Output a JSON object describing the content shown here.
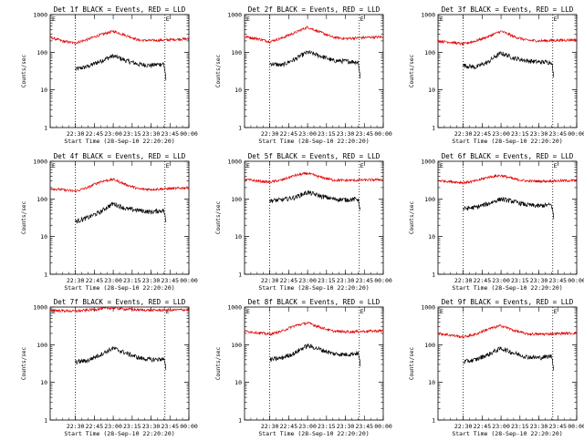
{
  "figure": {
    "x_axis_label": "Start Time (28-Sep-10 22:20:20)",
    "y_axis_label": "Counts/sec",
    "x_ticks": [
      "22:30",
      "22:45",
      "23:00",
      "23:15",
      "23:30",
      "23:45",
      "00:00"
    ],
    "y_ticks": [
      "1",
      "10",
      "100",
      "1000"
    ],
    "marker_label": "E",
    "colors": {
      "events": "#000000",
      "lld": "#e00000",
      "axes": "#000000"
    }
  },
  "chart_data": [
    {
      "type": "line",
      "title": "Det 1f BLACK = Events, RED = LLD",
      "xlabel": "Start Time (28-Sep-10 22:20:20)",
      "ylabel": "Counts/sec",
      "y_scale": "log",
      "ylim": [
        1,
        1000
      ],
      "x_range_minutes": [
        -10,
        100
      ],
      "x_tick_minutes": [
        10,
        25,
        40,
        55,
        70,
        85,
        100
      ],
      "vlines_minutes": [
        10,
        81
      ],
      "events_span": [
        10,
        82
      ],
      "lld_span": [
        -10,
        100
      ],
      "series": [
        {
          "name": "Events",
          "color": "#000000",
          "x": [
            10,
            20,
            30,
            40,
            50,
            60,
            70,
            80,
            82
          ],
          "y": [
            35,
            42,
            58,
            80,
            60,
            48,
            45,
            50,
            15
          ]
        },
        {
          "name": "LLD",
          "color": "#e00000",
          "x": [
            -10,
            0,
            10,
            20,
            30,
            40,
            50,
            60,
            70,
            80,
            90,
            100
          ],
          "y": [
            250,
            195,
            175,
            220,
            290,
            360,
            280,
            210,
            205,
            210,
            220,
            225
          ]
        }
      ]
    },
    {
      "type": "line",
      "title": "Det 2f BLACK = Events, RED = LLD",
      "xlabel": "Start Time (28-Sep-10 22:20:20)",
      "ylabel": "Counts/sec",
      "y_scale": "log",
      "ylim": [
        1,
        1000
      ],
      "x_range_minutes": [
        -10,
        100
      ],
      "x_tick_minutes": [
        10,
        25,
        40,
        55,
        70,
        85,
        100
      ],
      "vlines_minutes": [
        10,
        81
      ],
      "events_span": [
        10,
        82
      ],
      "lld_span": [
        -10,
        100
      ],
      "series": [
        {
          "name": "Events",
          "color": "#000000",
          "x": [
            10,
            20,
            30,
            40,
            50,
            60,
            70,
            80,
            82
          ],
          "y": [
            50,
            45,
            65,
            100,
            80,
            60,
            58,
            55,
            15
          ]
        },
        {
          "name": "LLD",
          "color": "#e00000",
          "x": [
            -10,
            0,
            10,
            20,
            30,
            40,
            50,
            60,
            70,
            80,
            90,
            100
          ],
          "y": [
            260,
            230,
            190,
            240,
            330,
            460,
            340,
            250,
            230,
            240,
            250,
            255
          ]
        }
      ]
    },
    {
      "type": "line",
      "title": "Det 3f BLACK = Events, RED = LLD",
      "xlabel": "Start Time (28-Sep-10 22:20:20)",
      "ylabel": "Counts/sec",
      "y_scale": "log",
      "ylim": [
        1,
        1000
      ],
      "x_range_minutes": [
        -10,
        100
      ],
      "x_tick_minutes": [
        10,
        25,
        40,
        55,
        70,
        85,
        100
      ],
      "vlines_minutes": [
        10,
        81
      ],
      "events_span": [
        10,
        82
      ],
      "lld_span": [
        -10,
        100
      ],
      "series": [
        {
          "name": "Events",
          "color": "#000000",
          "x": [
            10,
            20,
            30,
            40,
            50,
            60,
            70,
            80,
            82
          ],
          "y": [
            45,
            40,
            55,
            95,
            70,
            60,
            55,
            55,
            15
          ]
        },
        {
          "name": "LLD",
          "color": "#e00000",
          "x": [
            -10,
            0,
            10,
            20,
            30,
            40,
            50,
            60,
            70,
            80,
            90,
            100
          ],
          "y": [
            200,
            185,
            165,
            200,
            260,
            360,
            260,
            210,
            200,
            205,
            210,
            215
          ]
        }
      ]
    },
    {
      "type": "line",
      "title": "Det 4f BLACK = Events, RED = LLD",
      "xlabel": "Start Time (28-Sep-10 22:20:20)",
      "ylabel": "Counts/sec",
      "y_scale": "log",
      "ylim": [
        1,
        1000
      ],
      "x_range_minutes": [
        -10,
        100
      ],
      "x_tick_minutes": [
        10,
        25,
        40,
        55,
        70,
        85,
        100
      ],
      "vlines_minutes": [
        10,
        81
      ],
      "events_span": [
        10,
        82
      ],
      "lld_span": [
        -10,
        100
      ],
      "series": [
        {
          "name": "Events",
          "color": "#000000",
          "x": [
            10,
            20,
            30,
            40,
            50,
            60,
            70,
            80,
            82
          ],
          "y": [
            25,
            32,
            45,
            75,
            55,
            50,
            45,
            50,
            20
          ]
        },
        {
          "name": "LLD",
          "color": "#e00000",
          "x": [
            -10,
            0,
            10,
            20,
            30,
            40,
            50,
            60,
            70,
            80,
            90,
            100
          ],
          "y": [
            190,
            175,
            160,
            200,
            290,
            330,
            240,
            185,
            180,
            185,
            190,
            200
          ]
        }
      ]
    },
    {
      "type": "line",
      "title": "Det 5f BLACK = Events, RED = LLD",
      "xlabel": "Start Time (28-Sep-10 22:20:20)",
      "ylabel": "Counts/sec",
      "y_scale": "log",
      "ylim": [
        1,
        1000
      ],
      "x_range_minutes": [
        -10,
        100
      ],
      "x_tick_minutes": [
        10,
        25,
        40,
        55,
        70,
        85,
        100
      ],
      "vlines_minutes": [
        10,
        81
      ],
      "events_span": [
        10,
        82
      ],
      "lld_span": [
        -10,
        100
      ],
      "series": [
        {
          "name": "Events",
          "color": "#000000",
          "x": [
            10,
            20,
            30,
            40,
            50,
            60,
            70,
            80,
            82
          ],
          "y": [
            90,
            95,
            110,
            150,
            120,
            100,
            95,
            100,
            40
          ]
        },
        {
          "name": "LLD",
          "color": "#e00000",
          "x": [
            -10,
            0,
            10,
            20,
            30,
            40,
            50,
            60,
            70,
            80,
            90,
            100
          ],
          "y": [
            330,
            300,
            280,
            320,
            420,
            480,
            380,
            320,
            310,
            315,
            320,
            330
          ]
        }
      ]
    },
    {
      "type": "line",
      "title": "Det 6f BLACK = Events, RED = LLD",
      "xlabel": "Start Time (28-Sep-10 22:20:20)",
      "ylabel": "Counts/sec",
      "y_scale": "log",
      "ylim": [
        1,
        1000
      ],
      "x_range_minutes": [
        -10,
        100
      ],
      "x_tick_minutes": [
        10,
        25,
        40,
        55,
        70,
        85,
        100
      ],
      "vlines_minutes": [
        10,
        81
      ],
      "events_span": [
        10,
        82
      ],
      "lld_span": [
        -10,
        100
      ],
      "series": [
        {
          "name": "Events",
          "color": "#000000",
          "x": [
            10,
            20,
            30,
            40,
            50,
            60,
            70,
            80,
            82
          ],
          "y": [
            55,
            60,
            75,
            100,
            85,
            70,
            65,
            70,
            25
          ]
        },
        {
          "name": "LLD",
          "color": "#e00000",
          "x": [
            -10,
            0,
            10,
            20,
            30,
            40,
            50,
            60,
            70,
            80,
            90,
            100
          ],
          "y": [
            310,
            290,
            270,
            300,
            380,
            420,
            340,
            300,
            295,
            300,
            305,
            310
          ]
        }
      ]
    },
    {
      "type": "line",
      "title": "Det 7f BLACK = Events, RED = LLD",
      "xlabel": "Start Time (28-Sep-10 22:20:20)",
      "ylabel": "Counts/sec",
      "y_scale": "log",
      "ylim": [
        1,
        1000
      ],
      "x_range_minutes": [
        -10,
        100
      ],
      "x_tick_minutes": [
        10,
        25,
        40,
        55,
        70,
        85,
        100
      ],
      "vlines_minutes": [
        10,
        81
      ],
      "events_span": [
        10,
        82
      ],
      "lld_span": [
        -10,
        100
      ],
      "series": [
        {
          "name": "Events",
          "color": "#000000",
          "x": [
            10,
            20,
            30,
            40,
            50,
            60,
            70,
            80,
            82
          ],
          "y": [
            35,
            38,
            55,
            80,
            60,
            45,
            40,
            42,
            20
          ]
        },
        {
          "name": "LLD",
          "color": "#e00000",
          "x": [
            -10,
            0,
            10,
            20,
            30,
            40,
            50,
            60,
            70,
            80,
            90,
            100
          ],
          "y": [
            820,
            800,
            780,
            830,
            900,
            950,
            880,
            840,
            820,
            830,
            840,
            850
          ]
        }
      ]
    },
    {
      "type": "line",
      "title": "Det 8f BLACK = Events, RED = LLD",
      "xlabel": "Start Time (28-Sep-10 22:20:20)",
      "ylabel": "Counts/sec",
      "y_scale": "log",
      "ylim": [
        1,
        1000
      ],
      "x_range_minutes": [
        -10,
        100
      ],
      "x_tick_minutes": [
        10,
        25,
        40,
        55,
        70,
        85,
        100
      ],
      "vlines_minutes": [
        10,
        81
      ],
      "events_span": [
        10,
        82
      ],
      "lld_span": [
        -10,
        100
      ],
      "series": [
        {
          "name": "Events",
          "color": "#000000",
          "x": [
            10,
            20,
            30,
            40,
            50,
            60,
            70,
            80,
            82
          ],
          "y": [
            40,
            45,
            60,
            95,
            75,
            58,
            55,
            60,
            25
          ]
        },
        {
          "name": "LLD",
          "color": "#e00000",
          "x": [
            -10,
            0,
            10,
            20,
            30,
            40,
            50,
            60,
            70,
            80,
            90,
            100
          ],
          "y": [
            230,
            210,
            190,
            230,
            320,
            380,
            290,
            230,
            220,
            225,
            230,
            235
          ]
        }
      ]
    },
    {
      "type": "line",
      "title": "Det 9f BLACK = Events, RED = LLD",
      "xlabel": "Start Time (28-Sep-10 22:20:20)",
      "ylabel": "Counts/sec",
      "y_scale": "log",
      "ylim": [
        1,
        1000
      ],
      "x_range_minutes": [
        -10,
        100
      ],
      "x_tick_minutes": [
        10,
        25,
        40,
        55,
        70,
        85,
        100
      ],
      "vlines_minutes": [
        10,
        81
      ],
      "events_span": [
        10,
        82
      ],
      "lld_span": [
        -10,
        100
      ],
      "series": [
        {
          "name": "Events",
          "color": "#000000",
          "x": [
            10,
            20,
            30,
            40,
            50,
            60,
            70,
            80,
            82
          ],
          "y": [
            35,
            40,
            55,
            80,
            60,
            48,
            45,
            50,
            20
          ]
        },
        {
          "name": "LLD",
          "color": "#e00000",
          "x": [
            -10,
            0,
            10,
            20,
            30,
            40,
            50,
            60,
            70,
            80,
            90,
            100
          ],
          "y": [
            200,
            180,
            160,
            190,
            260,
            320,
            240,
            195,
            190,
            195,
            200,
            205
          ]
        }
      ]
    }
  ]
}
